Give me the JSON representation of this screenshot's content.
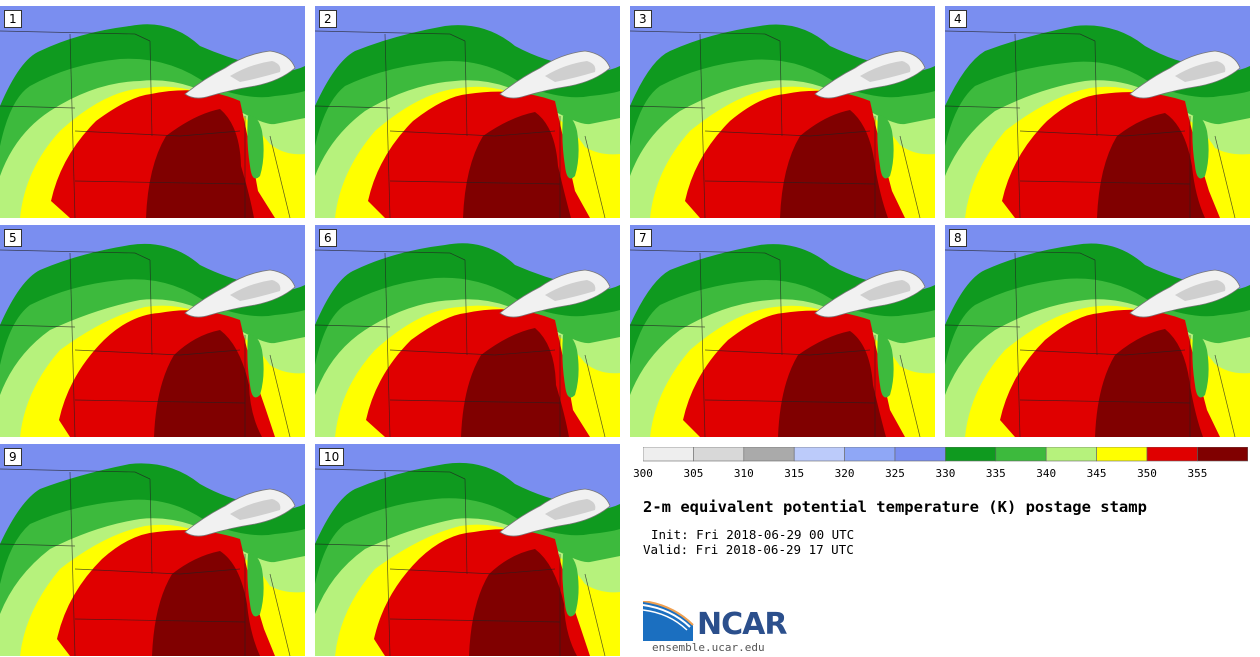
{
  "chart_data": {
    "type": "heatmap",
    "title": "2-m equivalent potential temperature (K) postage stamp",
    "init": "Init: Fri 2018-06-29 00 UTC",
    "valid": "Valid: Fri 2018-06-29 17 UTC",
    "members": [
      "1",
      "2",
      "3",
      "4",
      "5",
      "6",
      "7",
      "8",
      "9",
      "10"
    ],
    "colorbar": {
      "levels": [
        300,
        305,
        310,
        315,
        320,
        325,
        330,
        335,
        340,
        345,
        350,
        355
      ],
      "tick_labels": [
        "300",
        "305",
        "310",
        "315",
        "320",
        "325",
        "330",
        "335",
        "340",
        "345",
        "350",
        "355"
      ],
      "colors": [
        "#eeeeee",
        "#d8d8d8",
        "#aaaaaa",
        "#bccbfa",
        "#8fa7f6",
        "#7a8ef0",
        "#0f9a1f",
        "#3dba3d",
        "#b6f27c",
        "#ffff00",
        "#e00000",
        "#800000"
      ]
    }
  },
  "branding": {
    "logo_text": "NCAR",
    "site": "ensemble.ucar.edu"
  }
}
